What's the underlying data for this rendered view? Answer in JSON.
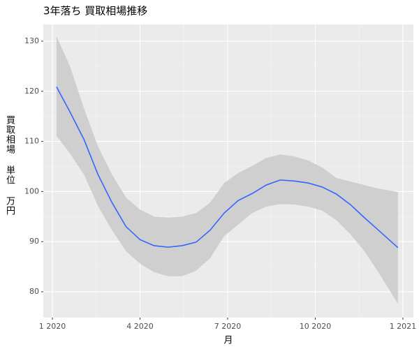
{
  "chart_data": {
    "type": "line",
    "title": "3年落ち 買取相場推移",
    "x_label": "月",
    "y_label": "買取相場 単位 万円",
    "x": [
      1.14,
      1.6,
      2.08,
      2.56,
      3.04,
      3.52,
      4.0,
      4.48,
      4.96,
      5.44,
      5.92,
      6.4,
      6.88,
      7.36,
      7.84,
      8.32,
      8.8,
      9.28,
      9.76,
      10.24,
      10.72,
      11.2,
      11.68,
      12.16,
      12.83
    ],
    "values": [
      120.9,
      115.9,
      110.4,
      103.4,
      97.8,
      93.0,
      90.4,
      89.2,
      88.9,
      89.2,
      89.9,
      92.3,
      95.7,
      98.2,
      99.6,
      101.3,
      102.3,
      102.1,
      101.7,
      100.9,
      99.5,
      97.4,
      94.8,
      92.3,
      88.8
    ],
    "upper": [
      131,
      125,
      116.6,
      109,
      103.4,
      98.8,
      96.4,
      95.0,
      94.8,
      95.0,
      95.7,
      97.8,
      101.7,
      103.7,
      105.1,
      106.7,
      107.4,
      107.0,
      106.2,
      104.8,
      102.7,
      102.0,
      101.3,
      100.6,
      99.9
    ],
    "lower": [
      111.1,
      107.6,
      103.4,
      97.1,
      92.3,
      88.1,
      85.6,
      83.9,
      83.1,
      83.1,
      84.2,
      86.7,
      91.1,
      93.4,
      95.7,
      97.0,
      97.5,
      97.4,
      97.0,
      96.2,
      94.3,
      91.5,
      88.1,
      83.9,
      77.6
    ],
    "color": "#3366ff",
    "band_color": "#cccccc",
    "xlim": [
      0.688,
      13.36
    ],
    "ylim": [
      74.85,
      133.34
    ],
    "xticks": [
      {
        "value": 1,
        "label": "1 2020"
      },
      {
        "value": 4,
        "label": "4 2020"
      },
      {
        "value": 7,
        "label": "7 2020"
      },
      {
        "value": 10,
        "label": "10 2020"
      },
      {
        "value": 13,
        "label": "1 2021"
      }
    ],
    "yticks": [
      80,
      90,
      100,
      110,
      120,
      130
    ],
    "grid": true
  }
}
